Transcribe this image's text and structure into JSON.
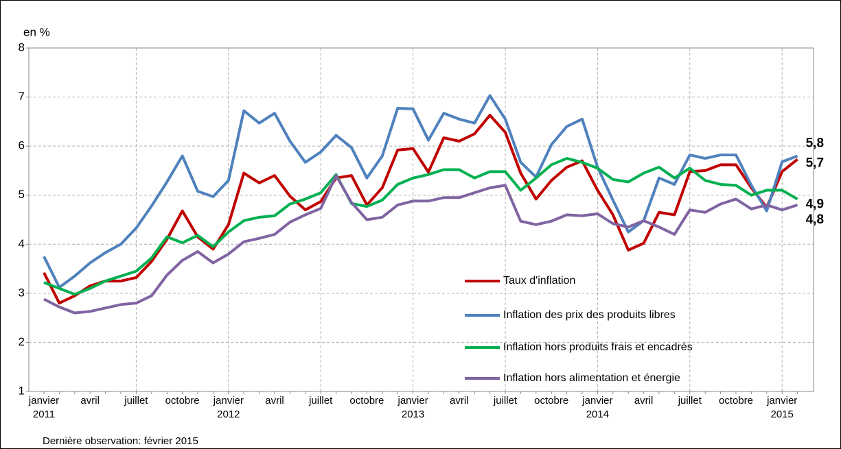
{
  "chart_data": {
    "type": "line",
    "y_unit_label": "en %",
    "note": "Dernière observation: février 2015",
    "categories": [
      "janvier 2011",
      null,
      null,
      "avril",
      null,
      null,
      "juillet",
      null,
      null,
      "octobre",
      null,
      null,
      "janvier 2012",
      null,
      null,
      "avril",
      null,
      null,
      "juillet",
      null,
      null,
      "octobre",
      null,
      null,
      "janvier 2013",
      null,
      null,
      "avril",
      null,
      null,
      "juillet",
      null,
      null,
      "octobre",
      null,
      null,
      "janvier 2014",
      null,
      null,
      "avril",
      null,
      null,
      "juillet",
      null,
      null,
      "octobre",
      null,
      null,
      "janvier 2015",
      null
    ],
    "ylim": [
      1,
      8
    ],
    "yticks": [
      1,
      2,
      3,
      4,
      5,
      6,
      7,
      8
    ],
    "grid": true,
    "legend": true,
    "series": [
      {
        "name": "Taux d'inflation",
        "color": "#c00000",
        "end_label": "5,7",
        "values": [
          3.42,
          2.8,
          2.95,
          3.15,
          3.25,
          3.25,
          3.32,
          3.65,
          4.1,
          4.68,
          4.15,
          3.9,
          4.4,
          5.45,
          5.25,
          5.4,
          4.98,
          4.7,
          4.87,
          5.35,
          5.4,
          4.8,
          5.15,
          5.92,
          5.95,
          5.47,
          6.17,
          6.1,
          6.25,
          6.63,
          6.28,
          5.45,
          4.92,
          5.3,
          5.57,
          5.7,
          5.1,
          4.6,
          3.88,
          4.02,
          4.65,
          4.6,
          5.48,
          5.5,
          5.62,
          5.62,
          5.15,
          4.75,
          5.48,
          5.73
        ]
      },
      {
        "name": "Inflation des prix des produits libres",
        "color": "#4f81bd",
        "end_label": "5,8",
        "values": [
          3.75,
          3.12,
          3.35,
          3.62,
          3.83,
          4.0,
          4.33,
          4.78,
          5.27,
          5.8,
          5.08,
          4.97,
          5.3,
          6.72,
          6.47,
          6.67,
          6.1,
          5.67,
          5.88,
          6.22,
          5.97,
          5.35,
          5.8,
          6.77,
          6.76,
          6.12,
          6.67,
          6.55,
          6.47,
          7.03,
          6.55,
          5.67,
          5.37,
          6.03,
          6.4,
          6.55,
          5.57,
          4.9,
          4.25,
          4.48,
          5.35,
          5.22,
          5.82,
          5.75,
          5.82,
          5.82,
          5.2,
          4.68,
          5.68,
          5.8
        ]
      },
      {
        "name": "Inflation hors produits frais et encadrés",
        "color": "#00b050",
        "end_label": "4,9",
        "values": [
          3.22,
          3.1,
          2.98,
          3.1,
          3.25,
          3.35,
          3.45,
          3.72,
          4.15,
          4.03,
          4.18,
          3.95,
          4.25,
          4.48,
          4.55,
          4.58,
          4.82,
          4.92,
          5.05,
          5.42,
          4.83,
          4.77,
          4.9,
          5.22,
          5.35,
          5.42,
          5.52,
          5.52,
          5.35,
          5.48,
          5.48,
          5.1,
          5.35,
          5.62,
          5.75,
          5.67,
          5.55,
          5.32,
          5.27,
          5.45,
          5.57,
          5.35,
          5.55,
          5.3,
          5.22,
          5.2,
          5.0,
          5.1,
          5.1,
          4.92
        ]
      },
      {
        "name": "Inflation hors alimentation et énergie",
        "color": "#8064a2",
        "end_label": "4,8",
        "values": [
          2.88,
          2.72,
          2.6,
          2.63,
          2.7,
          2.77,
          2.8,
          2.95,
          3.37,
          3.67,
          3.85,
          3.62,
          3.8,
          4.05,
          4.12,
          4.2,
          4.45,
          4.6,
          4.73,
          5.4,
          4.85,
          4.5,
          4.55,
          4.8,
          4.88,
          4.88,
          4.95,
          4.95,
          5.05,
          5.15,
          5.2,
          4.47,
          4.4,
          4.47,
          4.6,
          4.58,
          4.62,
          4.42,
          4.35,
          4.48,
          4.35,
          4.2,
          4.7,
          4.65,
          4.82,
          4.92,
          4.72,
          4.8,
          4.7,
          4.8
        ]
      }
    ]
  }
}
